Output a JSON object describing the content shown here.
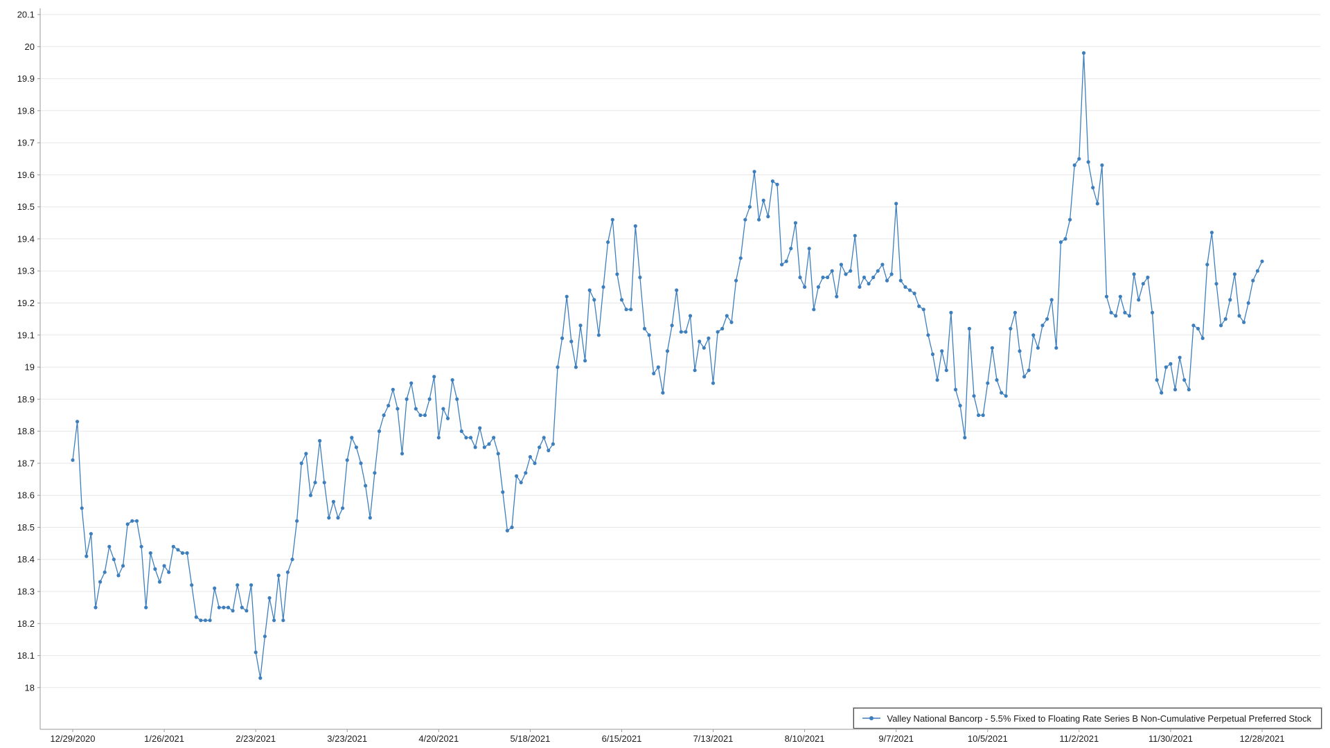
{
  "chart_data": {
    "type": "line",
    "title": "",
    "grid": "horizontal",
    "legend_position": "bottom-right",
    "x_tick_labels": [
      "12/29/2020",
      "1/26/2021",
      "2/23/2021",
      "3/23/2021",
      "4/20/2021",
      "5/18/2021",
      "6/15/2021",
      "7/13/2021",
      "8/10/2021",
      "9/7/2021",
      "10/5/2021",
      "11/2/2021",
      "11/30/2021",
      "12/28/2021"
    ],
    "y_tick_labels": [
      "18",
      "18.1",
      "18.2",
      "18.3",
      "18.4",
      "18.5",
      "18.6",
      "18.7",
      "18.8",
      "18.9",
      "19",
      "19.1",
      "19.2",
      "19.3",
      "19.4",
      "19.5",
      "19.6",
      "19.7",
      "19.8",
      "19.9",
      "20",
      "20.1"
    ],
    "ylim": [
      17.87,
      20.1
    ],
    "points_per_tick": 20,
    "series": [
      {
        "name": "Valley National Bancorp - 5.5% Fixed to Floating Rate Series B Non-Cumulative Perpetual Preferred Stock",
        "color": "#3d7ebd",
        "marker": "circle",
        "values": [
          18.71,
          18.83,
          18.56,
          18.41,
          18.48,
          18.25,
          18.33,
          18.36,
          18.44,
          18.4,
          18.35,
          18.38,
          18.51,
          18.52,
          18.52,
          18.44,
          18.25,
          18.42,
          18.37,
          18.33,
          18.38,
          18.36,
          18.44,
          18.43,
          18.42,
          18.42,
          18.32,
          18.22,
          18.21,
          18.21,
          18.21,
          18.31,
          18.25,
          18.25,
          18.25,
          18.24,
          18.32,
          18.25,
          18.24,
          18.32,
          18.11,
          18.03,
          18.16,
          18.28,
          18.21,
          18.35,
          18.21,
          18.36,
          18.4,
          18.52,
          18.7,
          18.73,
          18.6,
          18.64,
          18.77,
          18.64,
          18.53,
          18.58,
          18.53,
          18.56,
          18.71,
          18.78,
          18.75,
          18.7,
          18.63,
          18.53,
          18.67,
          18.8,
          18.85,
          18.88,
          18.93,
          18.87,
          18.73,
          18.9,
          18.95,
          18.87,
          18.85,
          18.85,
          18.9,
          18.97,
          18.78,
          18.87,
          18.84,
          18.96,
          18.9,
          18.8,
          18.78,
          18.78,
          18.75,
          18.81,
          18.75,
          18.76,
          18.78,
          18.73,
          18.61,
          18.49,
          18.5,
          18.66,
          18.64,
          18.67,
          18.72,
          18.7,
          18.75,
          18.78,
          18.74,
          18.76,
          19.0,
          19.09,
          19.22,
          19.08,
          19.0,
          19.13,
          19.02,
          19.24,
          19.21,
          19.1,
          19.25,
          19.39,
          19.46,
          19.29,
          19.21,
          19.18,
          19.18,
          19.44,
          19.28,
          19.12,
          19.1,
          18.98,
          19.0,
          18.92,
          19.05,
          19.13,
          19.24,
          19.11,
          19.11,
          19.16,
          18.99,
          19.08,
          19.06,
          19.09,
          18.95,
          19.11,
          19.12,
          19.16,
          19.14,
          19.27,
          19.34,
          19.46,
          19.5,
          19.61,
          19.46,
          19.52,
          19.47,
          19.58,
          19.57,
          19.32,
          19.33,
          19.37,
          19.45,
          19.28,
          19.25,
          19.37,
          19.18,
          19.25,
          19.28,
          19.28,
          19.3,
          19.22,
          19.32,
          19.29,
          19.3,
          19.41,
          19.25,
          19.28,
          19.26,
          19.28,
          19.3,
          19.32,
          19.27,
          19.29,
          19.51,
          19.27,
          19.25,
          19.24,
          19.23,
          19.19,
          19.18,
          19.1,
          19.04,
          18.96,
          19.05,
          18.99,
          19.17,
          18.93,
          18.88,
          18.78,
          19.12,
          18.91,
          18.85,
          18.85,
          18.95,
          19.06,
          18.96,
          18.92,
          18.91,
          19.12,
          19.17,
          19.05,
          18.97,
          18.99,
          19.1,
          19.06,
          19.13,
          19.15,
          19.21,
          19.06,
          19.39,
          19.4,
          19.46,
          19.63,
          19.65,
          19.98,
          19.64,
          19.56,
          19.51,
          19.63,
          19.22,
          19.17,
          19.16,
          19.22,
          19.17,
          19.16,
          19.29,
          19.21,
          19.26,
          19.28,
          19.17,
          18.96,
          18.92,
          19.0,
          19.01,
          18.93,
          19.03,
          18.96,
          18.93,
          19.13,
          19.12,
          19.09,
          19.32,
          19.42,
          19.26,
          19.13,
          19.15,
          19.21,
          19.29,
          19.16,
          19.14,
          19.2,
          19.27,
          19.3,
          19.33
        ]
      }
    ]
  }
}
